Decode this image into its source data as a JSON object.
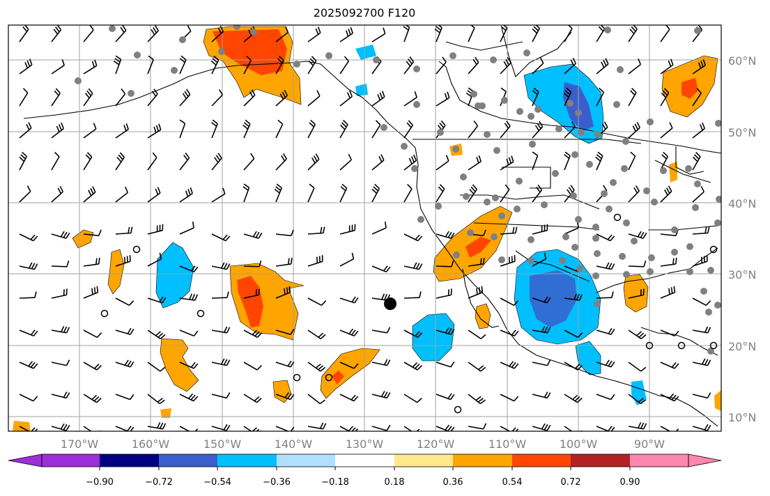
{
  "title": "2025092700 F120",
  "map": {
    "lon_labels": [
      "170°W",
      "160°W",
      "150°W",
      "140°W",
      "130°W",
      "120°W",
      "110°W",
      "100°W",
      "90°W"
    ],
    "lat_labels": [
      "60°N",
      "50°N",
      "40°N",
      "30°N",
      "20°N",
      "10°N"
    ],
    "grid_color": "#a0a0a0"
  },
  "colorbar": {
    "tick_labels": [
      "−0.90",
      "−0.72",
      "−0.54",
      "−0.36",
      "−0.18",
      "0.18",
      "0.36",
      "0.54",
      "0.72",
      "0.90"
    ],
    "colors": [
      "#9b30d9",
      "#000080",
      "#3a5fcd",
      "#00bfff",
      "#afe1ff",
      "#ffffff",
      "#ffe98b",
      "#ffa500",
      "#ff4500",
      "#b22222",
      "#ff86b0"
    ]
  }
}
